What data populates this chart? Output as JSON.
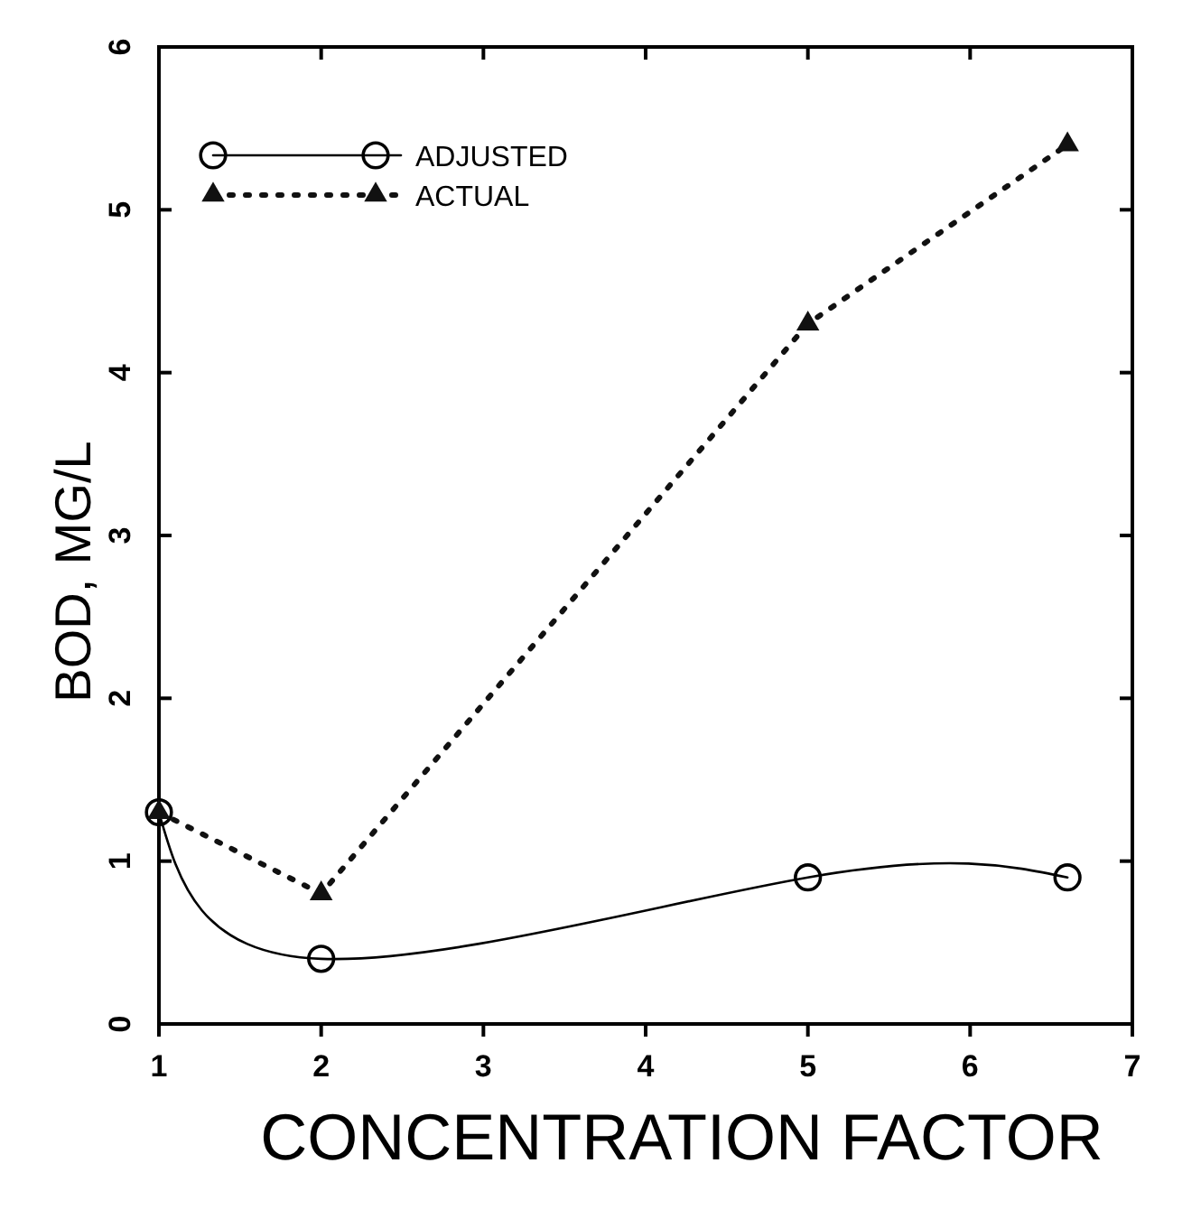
{
  "chart_data": {
    "type": "line",
    "xlabel": "CONCENTRATION FACTOR",
    "ylabel": "BOD, MG/L",
    "xlim": [
      1,
      7
    ],
    "ylim": [
      0,
      6
    ],
    "xticks": [
      1,
      2,
      3,
      4,
      5,
      6,
      7
    ],
    "yticks": [
      0,
      1,
      2,
      3,
      4,
      5,
      6
    ],
    "legend": "top left",
    "grid": false,
    "series": [
      {
        "name": "ADJUSTED",
        "color": "#000000",
        "x": [
          1,
          2,
          5,
          6.6
        ],
        "values": [
          1.3,
          0.4,
          0.9,
          0.9
        ],
        "marker": "circle",
        "line_style": "solid"
      },
      {
        "name": "ACTUAL",
        "color": "#111111",
        "x": [
          1,
          2,
          5,
          6.6
        ],
        "values": [
          1.3,
          0.8,
          4.3,
          5.4
        ],
        "marker": "triangle",
        "line_style": "dotted"
      }
    ]
  }
}
